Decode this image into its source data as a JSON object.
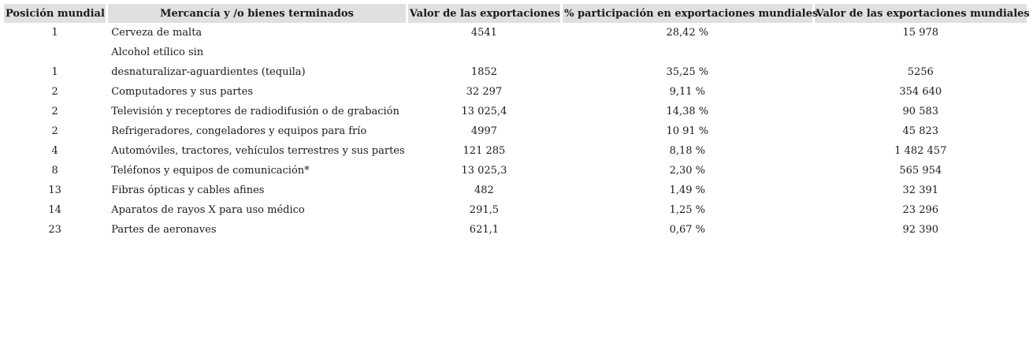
{
  "table": {
    "headers": [
      "Posición mundial",
      "Mercancía y /o bienes terminados",
      "Valor de las exportaciones",
      "% participación en exportaciones mundiales",
      "Valor de las exportaciones mundiales"
    ],
    "rows": [
      [
        "1",
        "Cerveza de malta",
        "4541",
        "28,42 %",
        "15 978"
      ],
      [
        "",
        "Alcohol etílico sin",
        "",
        "",
        ""
      ],
      [
        "1",
        "desnaturalizar-aguardientes (tequila)",
        "1852",
        "35,25 %",
        "5256"
      ],
      [
        "2",
        "Computadores y sus partes",
        "32 297",
        "9,11 %",
        "354 640"
      ],
      [
        "2",
        "Televisión y receptores de radiodifusión o de grabación",
        "13 025,4",
        "14,38 %",
        "90 583"
      ],
      [
        "2",
        "Refrigeradores, congeladores y equipos para frío",
        "4997",
        "10 91 %",
        "45 823"
      ],
      [
        "4",
        "Automóviles, tractores, vehículos terrestres y sus partes",
        "121 285",
        "8,18 %",
        "1 482 457"
      ],
      [
        "8",
        "Teléfonos y equipos de comunicación*",
        "13 025,3",
        "2,30 %",
        "565 954"
      ],
      [
        "13",
        "Fibras ópticas y cables afines",
        "482",
        "1,49 %",
        "32 391"
      ],
      [
        "14",
        "Aparatos de rayos X para uso médico",
        "291,5",
        "1,25 %",
        "23 296"
      ],
      [
        "23",
        "Partes de aeronaves",
        "621,1",
        "0,67 %",
        "92 390"
      ]
    ]
  },
  "colors": {
    "header_bg": "#e0e0e0",
    "text": "#1a1a1a",
    "page_bg": "#ffffff"
  }
}
